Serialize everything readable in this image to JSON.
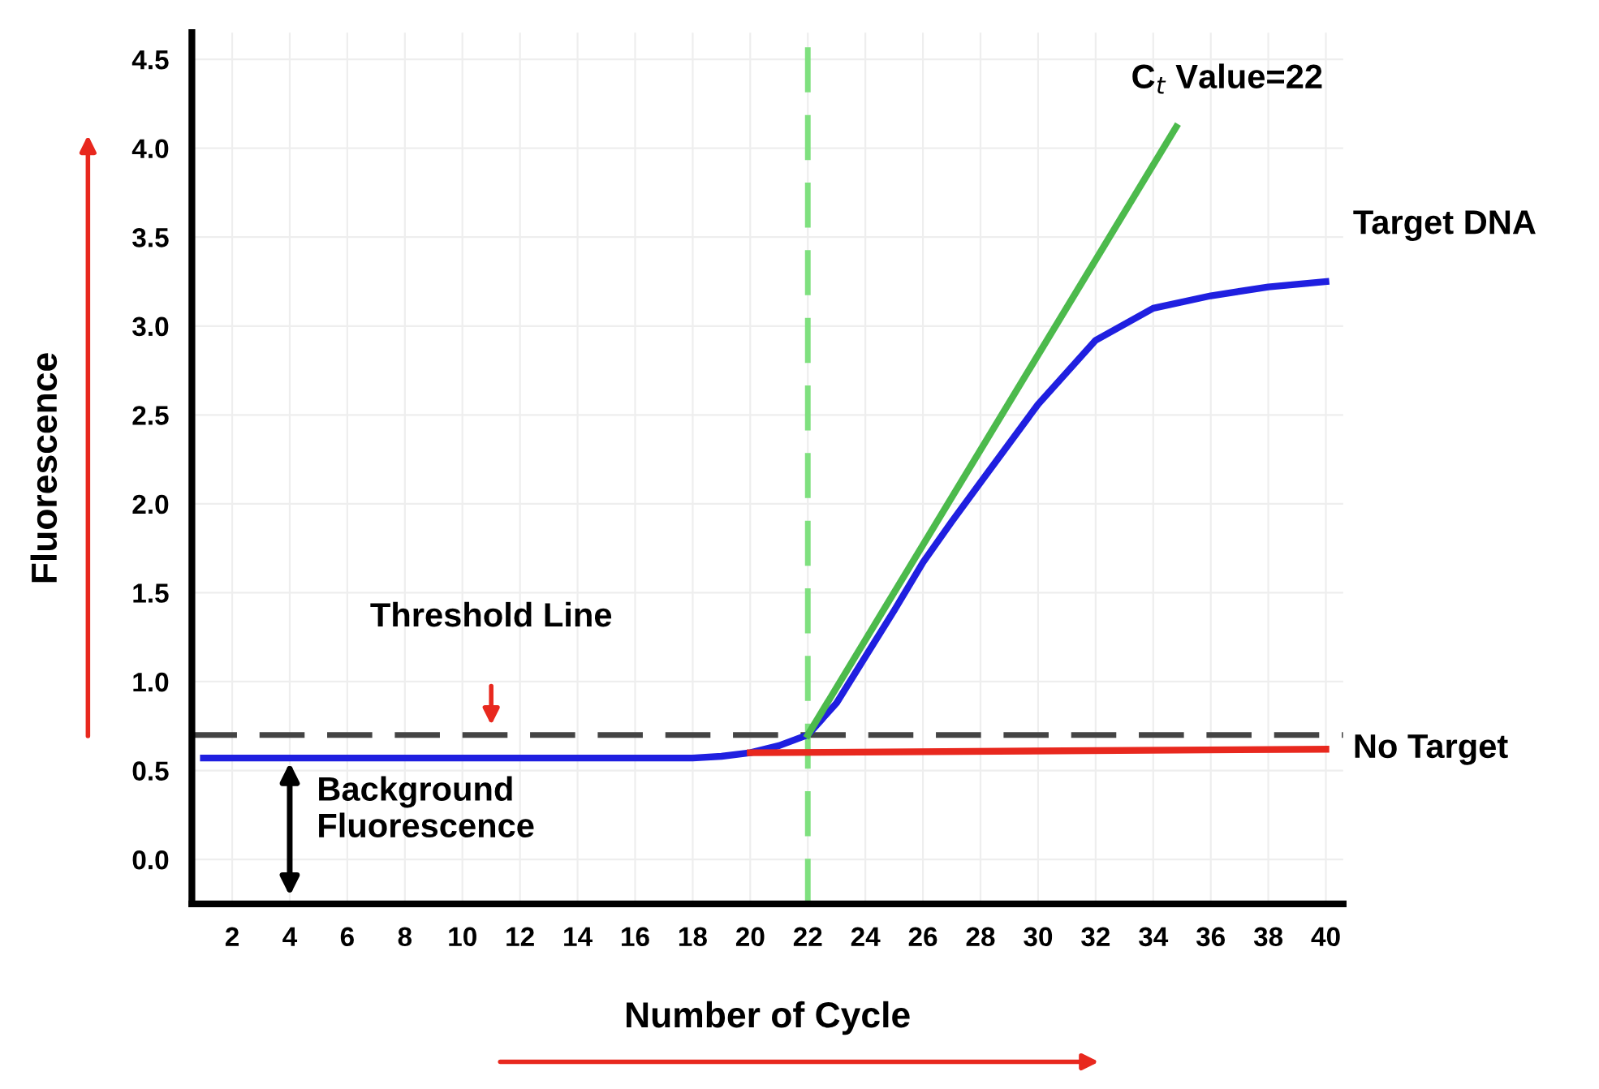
{
  "chart_data": {
    "type": "line",
    "xlabel": "Number of Cycle",
    "ylabel": "Fluorescence",
    "xlim": [
      0.6,
      40.6
    ],
    "xticks": [
      2,
      4,
      6,
      8,
      10,
      12,
      14,
      16,
      18,
      20,
      22,
      24,
      26,
      28,
      30,
      32,
      34,
      36,
      38,
      40
    ],
    "ylim": [
      -0.25,
      4.65
    ],
    "yticks": [
      {
        "value": 0,
        "label": "0.0"
      },
      0.5,
      {
        "value": 1,
        "label": "1.0"
      },
      1.5,
      {
        "value": 2,
        "label": "2.0"
      },
      2.5,
      {
        "value": 3,
        "label": "3.0"
      },
      3.5,
      {
        "value": 4,
        "label": "4.0"
      },
      4.5
    ],
    "grid": true,
    "marker": "none",
    "line_style": "solid",
    "series": [
      {
        "name": "Target DNA",
        "color": "#1f1fe0",
        "x": [
          1,
          4,
          8,
          12,
          16,
          18,
          19,
          20,
          21,
          22,
          23,
          24,
          25,
          26,
          27,
          28,
          30,
          32,
          34,
          36,
          38,
          40
        ],
        "values": [
          0.57,
          0.57,
          0.57,
          0.57,
          0.57,
          0.57,
          0.58,
          0.6,
          0.64,
          0.7,
          0.88,
          1.14,
          1.4,
          1.67,
          1.9,
          2.12,
          2.56,
          2.92,
          3.1,
          3.17,
          3.22,
          3.25
        ]
      },
      {
        "name": "No Target",
        "color": "#e8281e",
        "x": [
          20,
          40
        ],
        "values": [
          0.6,
          0.62
        ]
      },
      {
        "color": "#4cba4c",
        "x": [
          22,
          34.8
        ],
        "values": [
          0.7,
          4.12
        ]
      }
    ],
    "ref_lines": [
      {
        "axis": "y",
        "value": 0.7,
        "color": "#444444",
        "line_style": "dashed"
      },
      {
        "axis": "x",
        "value": 22,
        "color": "#7fe07f",
        "line_style": "dashed"
      }
    ],
    "annotations": [
      "Threshold Line",
      {
        "text": "C$_{t}$ Value=22",
        "x": 34.8,
        "y": 4.12
      },
      {
        "text": "Background Fluorescence",
        "x": 4,
        "y": 0.57
      }
    ]
  }
}
